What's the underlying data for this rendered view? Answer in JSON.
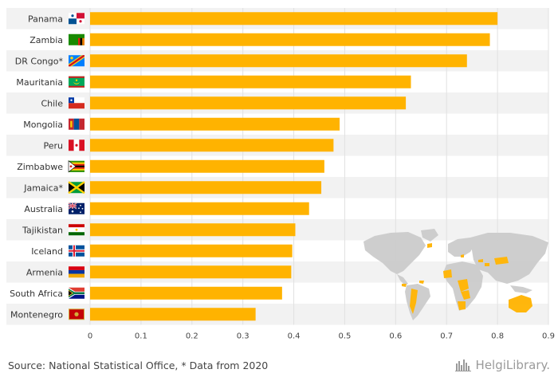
{
  "chart_data": {
    "type": "bar",
    "orientation": "horizontal",
    "categories": [
      "Panama",
      "Zambia",
      "DR Congo*",
      "Mauritania",
      "Chile",
      "Mongolia",
      "Peru",
      "Zimbabwe",
      "Jamaica*",
      "Australia",
      "Tajikistan",
      "Iceland",
      "Armenia",
      "South Africa",
      "Montenegro"
    ],
    "values": [
      0.8,
      0.785,
      0.74,
      0.63,
      0.62,
      0.49,
      0.478,
      0.46,
      0.454,
      0.43,
      0.403,
      0.397,
      0.395,
      0.377,
      0.325
    ],
    "xticks": [
      "0",
      "0.1",
      "0.2",
      "0.3",
      "0.4",
      "0.5",
      "0.6",
      "0.7",
      "0.8",
      "0.9"
    ],
    "xlim": [
      0,
      0.9
    ],
    "bar_color": "#FFB300",
    "grid": true,
    "legend": "none"
  },
  "flags": [
    "panama-flag-icon",
    "zambia-flag-icon",
    "dr-congo-flag-icon",
    "mauritania-flag-icon",
    "chile-flag-icon",
    "mongolia-flag-icon",
    "peru-flag-icon",
    "zimbabwe-flag-icon",
    "jamaica-flag-icon",
    "australia-flag-icon",
    "tajikistan-flag-icon",
    "iceland-flag-icon",
    "armenia-flag-icon",
    "south-africa-flag-icon",
    "montenegro-flag-icon"
  ],
  "world_map": {
    "icon": "world-map-icon",
    "highlight_color": "#FFB300",
    "base_color": "#cccccc"
  },
  "footer": {
    "source": "Source: National Statistical Office, * Data from 2020",
    "brand": "HelgiLibrary."
  }
}
